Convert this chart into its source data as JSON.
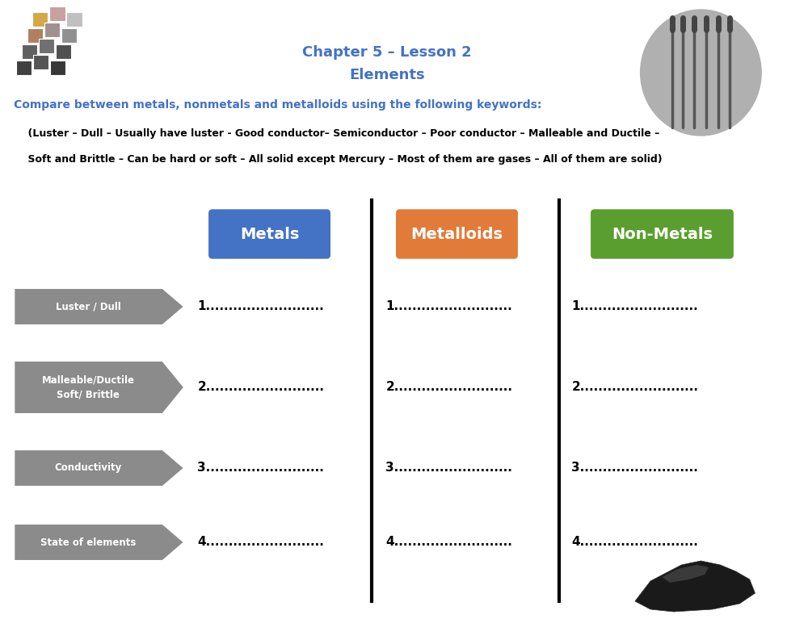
{
  "title_line1": "Chapter 5 – Lesson 2",
  "title_line2": "Elements",
  "title_color": "#4472C4",
  "subtitle": "Compare between metals, nonmetals and metalloids using the following keywords:",
  "subtitle_color": "#4472C4",
  "keywords_line1": "    (Luster – Dull – Usually have luster - Good conductor– Semiconductor – Poor conductor – Malleable and Ductile –",
  "keywords_line2": "    Soft and Brittle – Can be hard or soft – All solid except Mercury – Most of them are gases – All of them are solid)",
  "keywords_color": "#000000",
  "col_headers": [
    "Metals",
    "Metalloids",
    "Non-Metals"
  ],
  "col_header_colors": [
    "#4472C4",
    "#E07B39",
    "#5A9E2F"
  ],
  "arrow_labels": [
    "Luster / Dull",
    "Malleable/Ductile\nSoft/ Brittle",
    "Conductivity",
    "State of elements"
  ],
  "arrow_color": "#8B8B8B",
  "arrow_color_dark": "#707070",
  "bg_color": "#FFFFFF",
  "divider_color": "#000000",
  "text_color": "#000000",
  "dot_str": ".........................",
  "row_nums": [
    1,
    2,
    3,
    4
  ]
}
